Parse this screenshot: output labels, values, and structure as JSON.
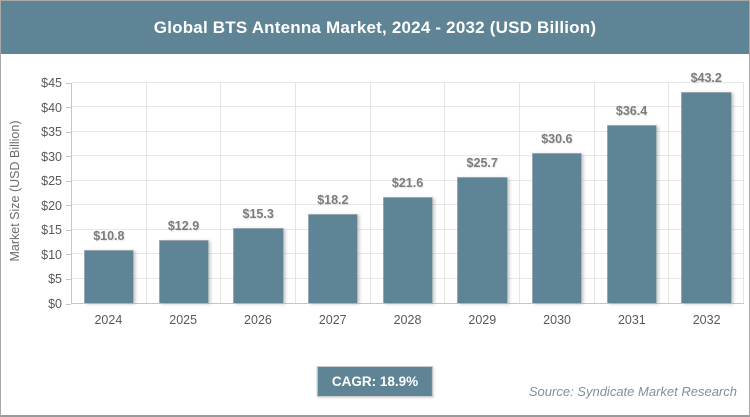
{
  "header": {
    "title": "Global BTS Antenna Market, 2024 - 2032 (USD Billion)"
  },
  "chart_data": {
    "type": "bar",
    "title": "Global BTS Antenna Market, 2024 - 2032 (USD Billion)",
    "categories": [
      "2024",
      "2025",
      "2026",
      "2027",
      "2028",
      "2029",
      "2030",
      "2031",
      "2032"
    ],
    "values": [
      10.8,
      12.9,
      15.3,
      18.2,
      21.6,
      25.7,
      30.6,
      36.4,
      43.2
    ],
    "value_labels": [
      "$10.8",
      "$12.9",
      "$15.3",
      "$18.2",
      "$21.6",
      "$25.7",
      "$30.6",
      "$36.4",
      "$43.2"
    ],
    "xlabel": "",
    "ylabel": "Market Size (USD Billion)",
    "ylim": [
      0,
      45
    ],
    "y_tick_step": 5,
    "y_ticks": [
      "$0",
      "$5",
      "$10",
      "$15",
      "$20",
      "$25",
      "$30",
      "$35",
      "$40",
      "$45"
    ],
    "grid": true,
    "legend": "none",
    "bar_color": "#5e8495"
  },
  "footer": {
    "cagr_label": "CAGR: 18.9%",
    "source": "Source: Syndicate Market Research"
  },
  "colors": {
    "accent": "#5e8495",
    "axis_text": "#595959",
    "value_label_text": "#7c7c7c",
    "gridline": "#e8e8e8",
    "axis_line": "#c6c6c6",
    "source_text": "#7e909c",
    "frame_border": "#a8a8a8",
    "title_text": "#ffffff"
  }
}
